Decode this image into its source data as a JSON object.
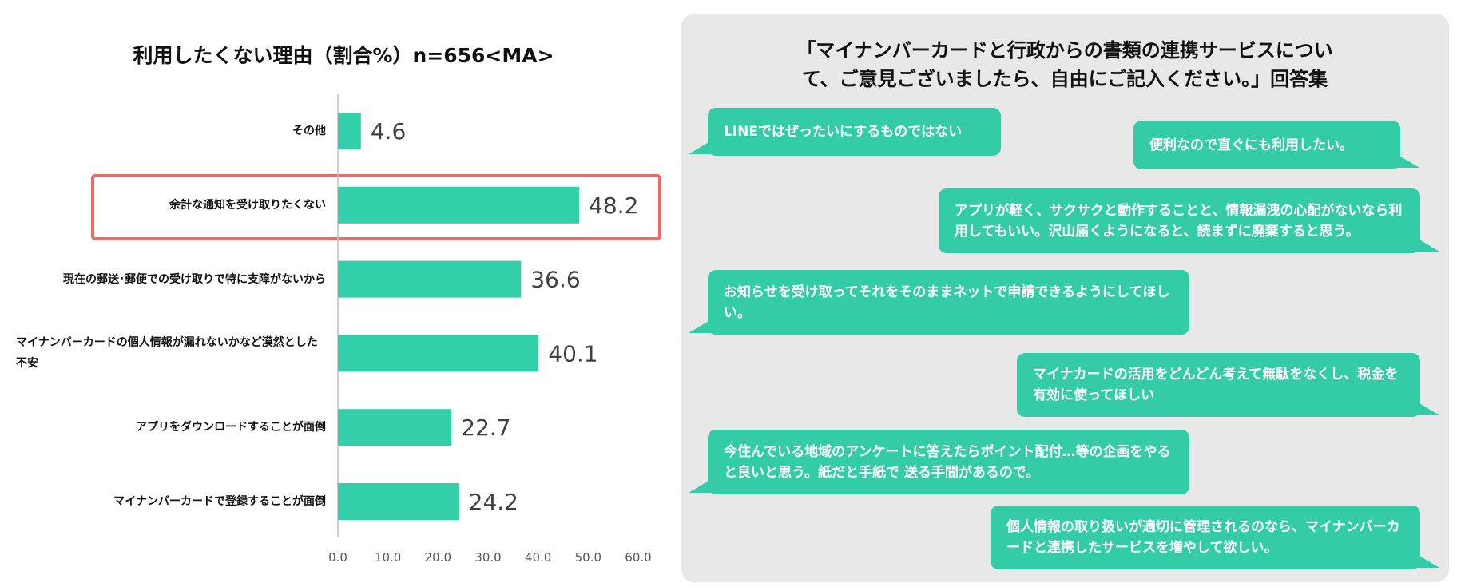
{
  "chart_data": {
    "type": "barh",
    "title": "利用したくない理由（割合%）n=656<MA>",
    "categories": [
      "その他",
      "余計な通知を受け取りたくない",
      "現在の郵送･郵便での受け取りで特に支障がないから",
      "マイナンバーカードの個人情報が漏れないかなど漠然とした不安",
      "アプリをダウンロードすることが面倒",
      "マイナンバーカードで登録することが面倒"
    ],
    "values": [
      4.6,
      48.2,
      36.6,
      40.1,
      22.7,
      24.2
    ],
    "color": "#33cfa8",
    "xlim": [
      0,
      60
    ],
    "xticks": [
      {
        "value": 0,
        "label": "0.0"
      },
      {
        "value": 10,
        "label": "10.0"
      },
      {
        "value": 20,
        "label": "20.0"
      },
      {
        "value": 30,
        "label": "30.0"
      },
      {
        "value": 40,
        "label": "40.0"
      },
      {
        "value": 50,
        "label": "50.0"
      },
      {
        "value": 60,
        "label": "60.0"
      }
    ]
  },
  "comments_panel": {
    "title": "「マイナンバーカードと行政からの書類の連携サービスについて、ご意見ございましたら、自由にご記入ください。」回答集",
    "comments": [
      "LINEではぜったいにするものではない",
      "便利なので直ぐにも利用したい。",
      "アプリが軽く、サクサクと動作することと、情報漏洩の心配がないなら利用してもいい。沢山届くようになると、読まずに廃棄すると思う。",
      "お知らせを受け取ってそれをそのままネットで申請できるようにしてほしい。",
      "マイナカードの活用をどんどん考えて無駄をなくし、税金を有効に使ってほしい",
      "今住んでいる地域のアンケートに答えたらポイント配付…等の企画をやると良いと思う。紙だと手紙で 送る手間があるので。",
      "個人情報の取り扱いが適切に管理されるのなら、マイナンバーカードと連携したサービスを増やして欲しい。"
    ]
  }
}
